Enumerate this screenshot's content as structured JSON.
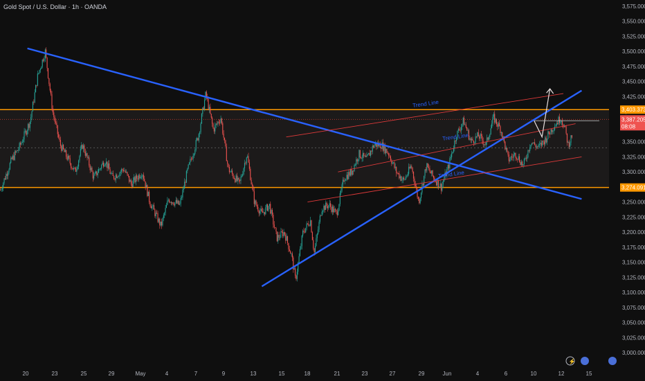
{
  "header": {
    "symbol": "Gold Spot / U.S. Dollar · 1h · OANDA"
  },
  "colors": {
    "background": "#0f0f0f",
    "up": "#26a69a",
    "down": "#ef5350",
    "trend": "#2962ff",
    "zone": "#ff9800",
    "channel": "#e03a3a",
    "arrow": "#e8e0e0"
  },
  "chart_data": {
    "type": "candlestick",
    "ylim": [
      3000,
      3575
    ],
    "yticks": [
      "3,575.000",
      "3,550.000",
      "3,525.000",
      "3,500.000",
      "3,475.000",
      "3,450.000",
      "3,425.000",
      "3,400.000",
      "3,375.000",
      "3,350.000",
      "3,325.000",
      "3,300.000",
      "3,275.000",
      "3,250.000",
      "3,225.000",
      "3,200.000",
      "3,175.000",
      "3,150.000",
      "3,125.000",
      "3,100.000",
      "3,075.000",
      "3,050.000",
      "3,025.000",
      "3,000.000"
    ],
    "xticks": [
      "20",
      "23",
      "25",
      "29",
      "May",
      "4",
      "7",
      "9",
      "13",
      "15",
      "18",
      "21",
      "23",
      "27",
      "29",
      "Jun",
      "4",
      "6",
      "10",
      "12",
      "15"
    ],
    "price_path": [
      [
        0,
        3270
      ],
      [
        3,
        3320
      ],
      [
        5,
        3340
      ],
      [
        8,
        3385
      ],
      [
        10,
        3460
      ],
      [
        12,
        3500
      ],
      [
        14,
        3400
      ],
      [
        16,
        3345
      ],
      [
        20,
        3300
      ],
      [
        22,
        3345
      ],
      [
        25,
        3290
      ],
      [
        28,
        3320
      ],
      [
        30,
        3290
      ],
      [
        33,
        3305
      ],
      [
        35,
        3280
      ],
      [
        38,
        3300
      ],
      [
        40,
        3250
      ],
      [
        43,
        3210
      ],
      [
        45,
        3255
      ],
      [
        48,
        3245
      ],
      [
        50,
        3300
      ],
      [
        53,
        3360
      ],
      [
        55,
        3430
      ],
      [
        57,
        3370
      ],
      [
        59,
        3390
      ],
      [
        61,
        3305
      ],
      [
        64,
        3280
      ],
      [
        66,
        3330
      ],
      [
        68,
        3250
      ],
      [
        70,
        3230
      ],
      [
        72,
        3245
      ],
      [
        74,
        3190
      ],
      [
        76,
        3200
      ],
      [
        78,
        3160
      ],
      [
        79,
        3120
      ],
      [
        81,
        3200
      ],
      [
        83,
        3220
      ],
      [
        84,
        3165
      ],
      [
        86,
        3240
      ],
      [
        88,
        3245
      ],
      [
        90,
        3230
      ],
      [
        92,
        3290
      ],
      [
        94,
        3300
      ],
      [
        96,
        3330
      ],
      [
        98,
        3320
      ],
      [
        100,
        3345
      ],
      [
        102,
        3345
      ],
      [
        104,
        3330
      ],
      [
        106,
        3300
      ],
      [
        108,
        3285
      ],
      [
        110,
        3310
      ],
      [
        112,
        3250
      ],
      [
        114,
        3310
      ],
      [
        116,
        3290
      ],
      [
        118,
        3275
      ],
      [
        120,
        3310
      ],
      [
        122,
        3360
      ],
      [
        124,
        3385
      ],
      [
        126,
        3350
      ],
      [
        128,
        3360
      ],
      [
        130,
        3345
      ],
      [
        132,
        3390
      ],
      [
        134,
        3370
      ],
      [
        136,
        3320
      ],
      [
        138,
        3330
      ],
      [
        140,
        3310
      ],
      [
        142,
        3350
      ],
      [
        144,
        3340
      ],
      [
        146,
        3355
      ],
      [
        148,
        3375
      ],
      [
        150,
        3390
      ],
      [
        151,
        3375
      ],
      [
        152,
        3345
      ],
      [
        153,
        3360
      ]
    ],
    "levels": [
      {
        "label": "3,403.373",
        "value": 3403.373
      },
      {
        "label": "3,274.091",
        "value": 3274.091
      }
    ],
    "price_tag": {
      "label": "3,387.205",
      "sublabel": "08:08",
      "value": 3387.205
    },
    "dotted_level": 3340,
    "trend_lines": [
      {
        "name": "descending",
        "from": [
          0.045,
          3505
        ],
        "to": [
          0.955,
          3255
        ]
      },
      {
        "name": "ascending",
        "from": [
          0.43,
          3110
        ],
        "to": [
          0.955,
          3435
        ]
      }
    ],
    "channel_lines": [
      {
        "from": [
          0.47,
          3358
        ],
        "to": [
          0.925,
          3430
        ]
      },
      {
        "from": [
          0.555,
          3300
        ],
        "to": [
          0.945,
          3380
        ]
      },
      {
        "from": [
          0.505,
          3250
        ],
        "to": [
          0.955,
          3325
        ]
      }
    ],
    "channel_labels": [
      {
        "text": "Trend Line",
        "at": [
          0.678,
          3407
        ]
      },
      {
        "text": "Trend Line",
        "at": [
          0.727,
          3352
        ]
      },
      {
        "text": "Trend Line",
        "at": [
          0.72,
          3290
        ]
      }
    ],
    "projection": [
      [
        0.877,
        3385
      ],
      [
        0.89,
        3358
      ],
      [
        0.903,
        3438
      ]
    ]
  }
}
